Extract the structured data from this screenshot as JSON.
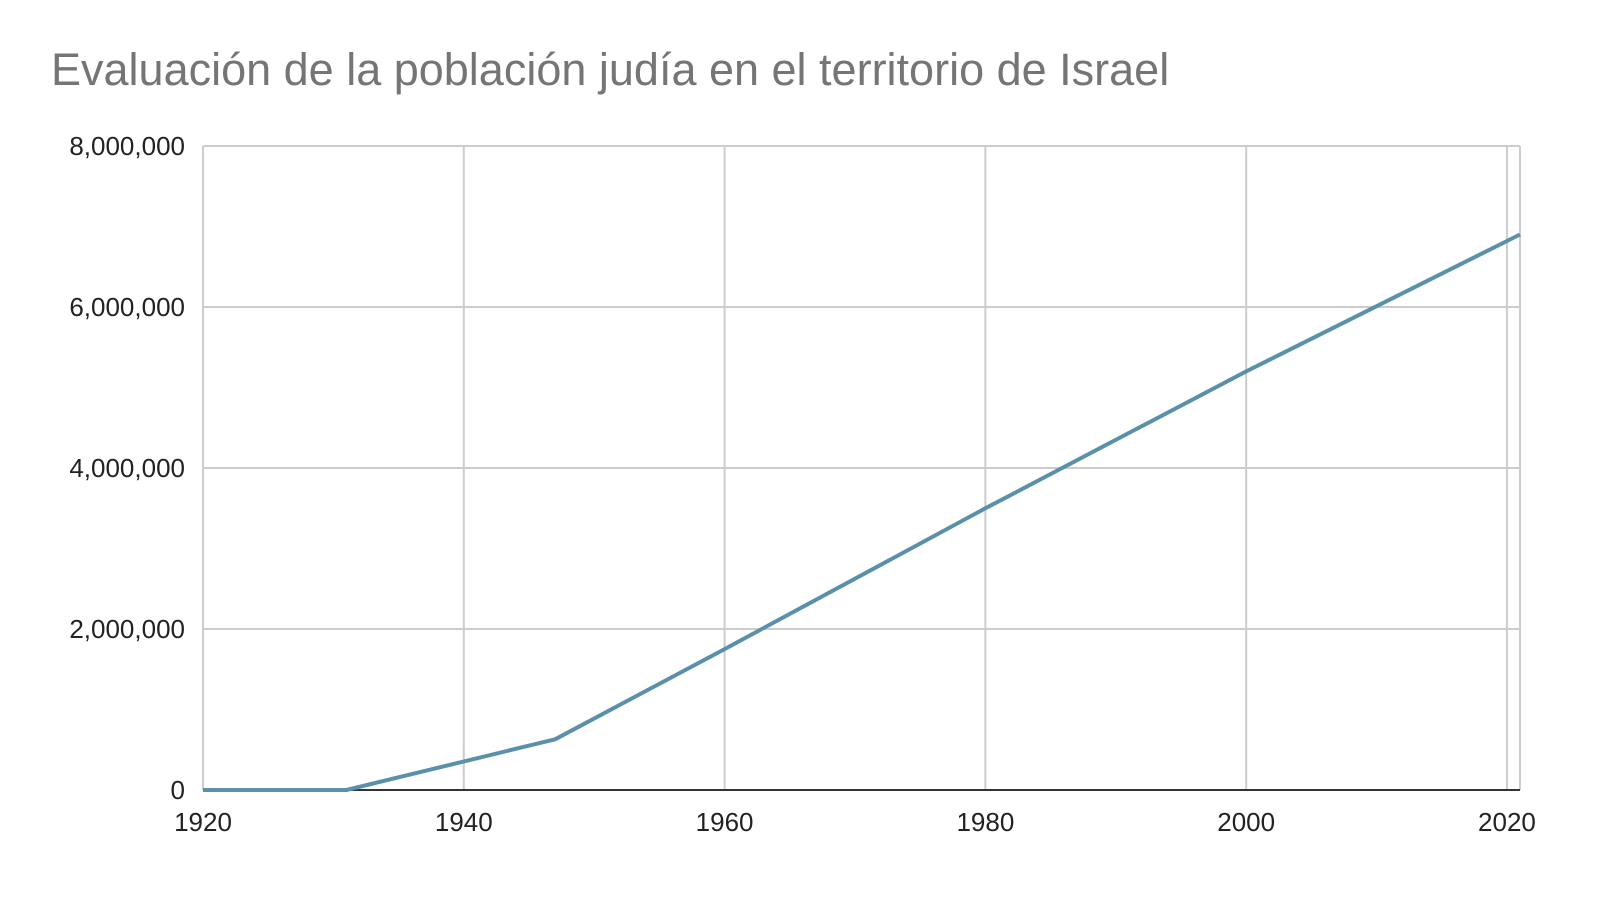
{
  "chart_data": {
    "type": "line",
    "title": "Evaluación de la población judía en el territorio de Israel",
    "xlabel": "",
    "ylabel": "",
    "xlim": [
      1920,
      2021
    ],
    "ylim": [
      0,
      8000000
    ],
    "x_ticks": [
      1920,
      1940,
      1960,
      1980,
      2000,
      2020
    ],
    "x_tick_labels": [
      "1920",
      "1940",
      "1960",
      "1980",
      "2000",
      "2020"
    ],
    "y_ticks": [
      0,
      2000000,
      4000000,
      6000000,
      8000000
    ],
    "y_tick_labels": [
      "0",
      "2,000,000",
      "4,000,000",
      "6,000,000",
      "8,000,000"
    ],
    "grid": true,
    "legend": "none",
    "series": [
      {
        "color": "#5b90aa",
        "x": [
          1920,
          1931,
          1947,
          1960,
          1980,
          2000,
          2021
        ],
        "y": [
          0,
          0,
          630000,
          1750000,
          3500000,
          5200000,
          6900000
        ]
      }
    ]
  }
}
